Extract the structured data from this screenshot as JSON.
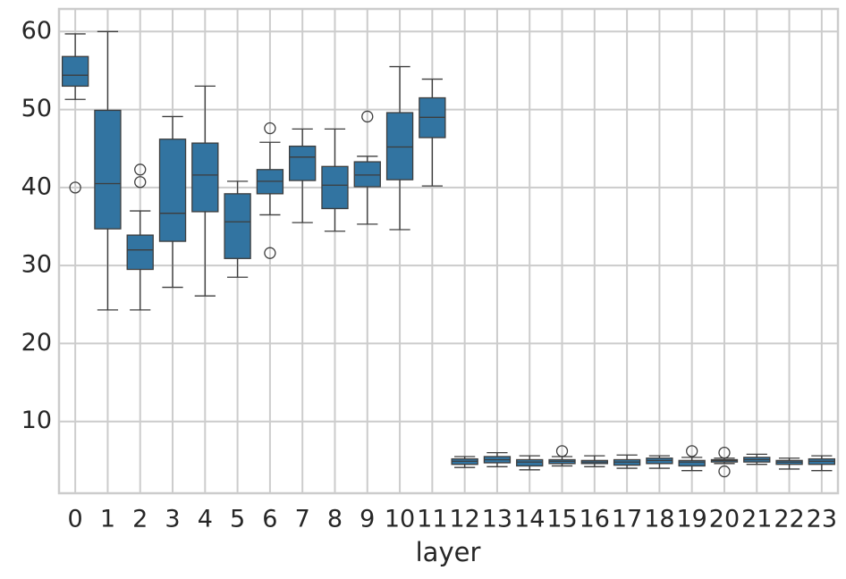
{
  "chart_data": {
    "type": "box",
    "xlabel": "layer",
    "color": "#3274a1",
    "grid": true,
    "categories": [
      "0",
      "1",
      "2",
      "3",
      "4",
      "5",
      "6",
      "7",
      "8",
      "9",
      "10",
      "11",
      "12",
      "13",
      "14",
      "15",
      "16",
      "17",
      "18",
      "19",
      "20",
      "21",
      "22",
      "23"
    ],
    "boxes": [
      {
        "whislo": 51.3,
        "q1": 53.0,
        "med": 54.4,
        "q3": 56.8,
        "whishi": 59.7,
        "fliers": [
          40.0
        ]
      },
      {
        "whislo": 24.3,
        "q1": 34.7,
        "med": 40.5,
        "q3": 49.9,
        "whishi": 60.0,
        "fliers": []
      },
      {
        "whislo": 24.3,
        "q1": 29.5,
        "med": 32.0,
        "q3": 33.9,
        "whishi": 37.0,
        "fliers": [
          42.3,
          40.7
        ]
      },
      {
        "whislo": 27.2,
        "q1": 33.1,
        "med": 36.7,
        "q3": 46.2,
        "whishi": 49.1,
        "fliers": []
      },
      {
        "whislo": 26.1,
        "q1": 36.9,
        "med": 41.6,
        "q3": 45.7,
        "whishi": 53.0,
        "fliers": []
      },
      {
        "whislo": 28.5,
        "q1": 30.9,
        "med": 35.6,
        "q3": 39.2,
        "whishi": 40.8,
        "fliers": []
      },
      {
        "whislo": 36.5,
        "q1": 39.2,
        "med": 40.8,
        "q3": 42.3,
        "whishi": 45.8,
        "fliers": [
          47.6,
          31.6
        ]
      },
      {
        "whislo": 35.5,
        "q1": 40.9,
        "med": 43.9,
        "q3": 45.3,
        "whishi": 47.5,
        "fliers": []
      },
      {
        "whislo": 34.4,
        "q1": 37.3,
        "med": 40.3,
        "q3": 42.7,
        "whishi": 47.5,
        "fliers": []
      },
      {
        "whislo": 35.3,
        "q1": 40.1,
        "med": 41.6,
        "q3": 43.3,
        "whishi": 44.0,
        "fliers": [
          49.1
        ]
      },
      {
        "whislo": 34.6,
        "q1": 41.0,
        "med": 45.2,
        "q3": 49.6,
        "whishi": 55.5,
        "fliers": []
      },
      {
        "whislo": 40.2,
        "q1": 46.4,
        "med": 49.0,
        "q3": 51.5,
        "whishi": 53.9,
        "fliers": []
      },
      {
        "whislo": 4.1,
        "q1": 4.5,
        "med": 4.9,
        "q3": 5.2,
        "whishi": 5.5,
        "fliers": []
      },
      {
        "whislo": 4.2,
        "q1": 4.7,
        "med": 5.1,
        "q3": 5.5,
        "whishi": 6.0,
        "fliers": []
      },
      {
        "whislo": 3.8,
        "q1": 4.3,
        "med": 4.8,
        "q3": 5.1,
        "whishi": 5.6,
        "fliers": []
      },
      {
        "whislo": 4.3,
        "q1": 4.6,
        "med": 4.9,
        "q3": 5.1,
        "whishi": 5.5,
        "fliers": [
          6.2
        ]
      },
      {
        "whislo": 4.2,
        "q1": 4.6,
        "med": 4.8,
        "q3": 5.0,
        "whishi": 5.6,
        "fliers": []
      },
      {
        "whislo": 4.0,
        "q1": 4.4,
        "med": 4.8,
        "q3": 5.1,
        "whishi": 5.7,
        "fliers": []
      },
      {
        "whislo": 4.0,
        "q1": 4.6,
        "med": 5.0,
        "q3": 5.3,
        "whishi": 5.6,
        "fliers": []
      },
      {
        "whislo": 3.7,
        "q1": 4.3,
        "med": 4.8,
        "q3": 5.0,
        "whishi": 5.4,
        "fliers": [
          6.2
        ]
      },
      {
        "whislo": 4.6,
        "q1": 4.8,
        "med": 5.0,
        "q3": 5.1,
        "whishi": 5.3,
        "fliers": [
          6.0,
          3.6
        ]
      },
      {
        "whislo": 4.5,
        "q1": 4.8,
        "med": 5.1,
        "q3": 5.4,
        "whishi": 5.8,
        "fliers": []
      },
      {
        "whislo": 3.9,
        "q1": 4.5,
        "med": 4.8,
        "q3": 5.0,
        "whishi": 5.3,
        "fliers": []
      },
      {
        "whislo": 3.7,
        "q1": 4.5,
        "med": 4.9,
        "q3": 5.2,
        "whishi": 5.6,
        "fliers": []
      }
    ],
    "ylim": [
      0.8,
      62.9
    ],
    "yticks": [
      10,
      20,
      30,
      40,
      50,
      60
    ]
  }
}
